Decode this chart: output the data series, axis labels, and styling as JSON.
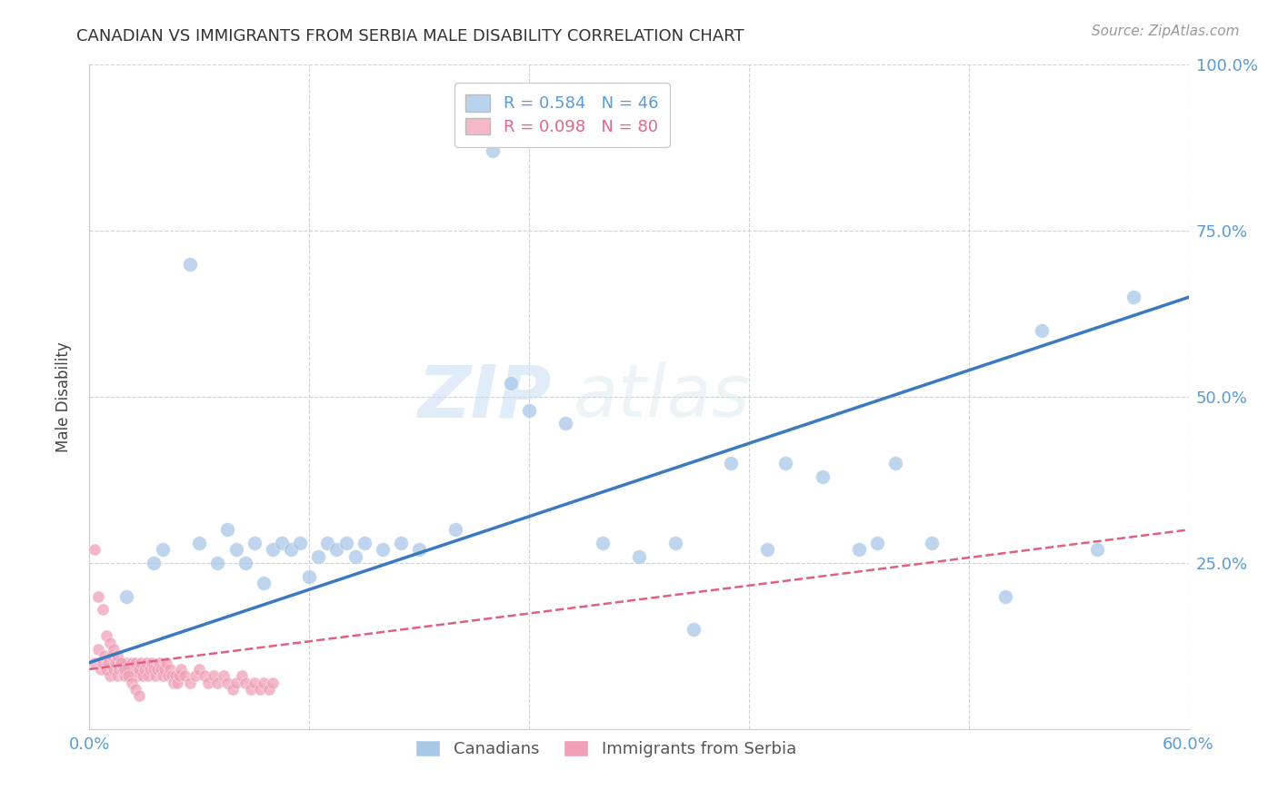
{
  "title": "CANADIAN VS IMMIGRANTS FROM SERBIA MALE DISABILITY CORRELATION CHART",
  "source": "Source: ZipAtlas.com",
  "ylabel_label": "Male Disability",
  "xlim": [
    0.0,
    0.6
  ],
  "ylim": [
    0.0,
    1.0
  ],
  "xticks": [
    0.0,
    0.12,
    0.24,
    0.36,
    0.48,
    0.6
  ],
  "xticklabels": [
    "0.0%",
    "",
    "",
    "",
    "",
    "60.0%"
  ],
  "yticks": [
    0.0,
    0.25,
    0.5,
    0.75,
    1.0
  ],
  "yticklabels_right": [
    "",
    "25.0%",
    "50.0%",
    "75.0%",
    "100.0%"
  ],
  "canadian_R": 0.584,
  "canadian_N": 46,
  "serbian_R": 0.098,
  "serbian_N": 80,
  "canadian_color": "#a8c8e8",
  "serbian_color": "#f0a0b8",
  "canadian_line_color": "#3a7abf",
  "serbian_line_color": "#e06080",
  "legend_box_color_canadian": "#b8d4ec",
  "legend_box_color_serbian": "#f5b8c8",
  "watermark_zip": "ZIP",
  "watermark_atlas": "atlas",
  "background_color": "#ffffff",
  "grid_color": "#d0d0d0",
  "canadian_scatter_x": [
    0.02,
    0.04,
    0.035,
    0.06,
    0.055,
    0.07,
    0.075,
    0.08,
    0.085,
    0.09,
    0.095,
    0.1,
    0.105,
    0.11,
    0.115,
    0.12,
    0.125,
    0.13,
    0.135,
    0.14,
    0.145,
    0.15,
    0.16,
    0.17,
    0.18,
    0.2,
    0.22,
    0.24,
    0.26,
    0.28,
    0.3,
    0.32,
    0.35,
    0.37,
    0.38,
    0.4,
    0.42,
    0.44,
    0.46,
    0.5,
    0.52,
    0.55,
    0.57,
    0.23,
    0.33,
    0.43
  ],
  "canadian_scatter_y": [
    0.2,
    0.27,
    0.25,
    0.28,
    0.7,
    0.25,
    0.3,
    0.27,
    0.25,
    0.28,
    0.22,
    0.27,
    0.28,
    0.27,
    0.28,
    0.23,
    0.26,
    0.28,
    0.27,
    0.28,
    0.26,
    0.28,
    0.27,
    0.28,
    0.27,
    0.3,
    0.87,
    0.48,
    0.46,
    0.28,
    0.26,
    0.28,
    0.4,
    0.27,
    0.4,
    0.38,
    0.27,
    0.4,
    0.28,
    0.2,
    0.6,
    0.27,
    0.65,
    0.52,
    0.15,
    0.28
  ],
  "serbian_scatter_x": [
    0.003,
    0.005,
    0.006,
    0.007,
    0.008,
    0.009,
    0.01,
    0.011,
    0.012,
    0.013,
    0.014,
    0.015,
    0.016,
    0.017,
    0.018,
    0.019,
    0.02,
    0.021,
    0.022,
    0.023,
    0.024,
    0.025,
    0.026,
    0.027,
    0.028,
    0.029,
    0.03,
    0.031,
    0.032,
    0.033,
    0.034,
    0.035,
    0.036,
    0.037,
    0.038,
    0.039,
    0.04,
    0.041,
    0.042,
    0.043,
    0.044,
    0.045,
    0.046,
    0.047,
    0.048,
    0.049,
    0.05,
    0.052,
    0.055,
    0.058,
    0.06,
    0.063,
    0.065,
    0.068,
    0.07,
    0.073,
    0.075,
    0.078,
    0.08,
    0.083,
    0.085,
    0.088,
    0.09,
    0.093,
    0.095,
    0.098,
    0.1,
    0.003,
    0.005,
    0.007,
    0.009,
    0.011,
    0.013,
    0.015,
    0.017,
    0.019,
    0.021,
    0.023,
    0.025,
    0.027
  ],
  "serbian_scatter_y": [
    0.1,
    0.12,
    0.09,
    0.1,
    0.11,
    0.09,
    0.1,
    0.08,
    0.11,
    0.09,
    0.1,
    0.08,
    0.09,
    0.1,
    0.09,
    0.08,
    0.1,
    0.09,
    0.08,
    0.1,
    0.09,
    0.1,
    0.08,
    0.09,
    0.1,
    0.08,
    0.09,
    0.1,
    0.08,
    0.09,
    0.1,
    0.09,
    0.08,
    0.09,
    0.1,
    0.09,
    0.08,
    0.09,
    0.1,
    0.08,
    0.09,
    0.08,
    0.07,
    0.08,
    0.07,
    0.08,
    0.09,
    0.08,
    0.07,
    0.08,
    0.09,
    0.08,
    0.07,
    0.08,
    0.07,
    0.08,
    0.07,
    0.06,
    0.07,
    0.08,
    0.07,
    0.06,
    0.07,
    0.06,
    0.07,
    0.06,
    0.07,
    0.27,
    0.2,
    0.18,
    0.14,
    0.13,
    0.12,
    0.11,
    0.1,
    0.09,
    0.08,
    0.07,
    0.06,
    0.05
  ],
  "can_line_x0": 0.0,
  "can_line_y0": 0.1,
  "can_line_x1": 0.6,
  "can_line_y1": 0.65,
  "ser_line_x0": 0.0,
  "ser_line_y0": 0.09,
  "ser_line_x1": 0.6,
  "ser_line_y1": 0.3
}
